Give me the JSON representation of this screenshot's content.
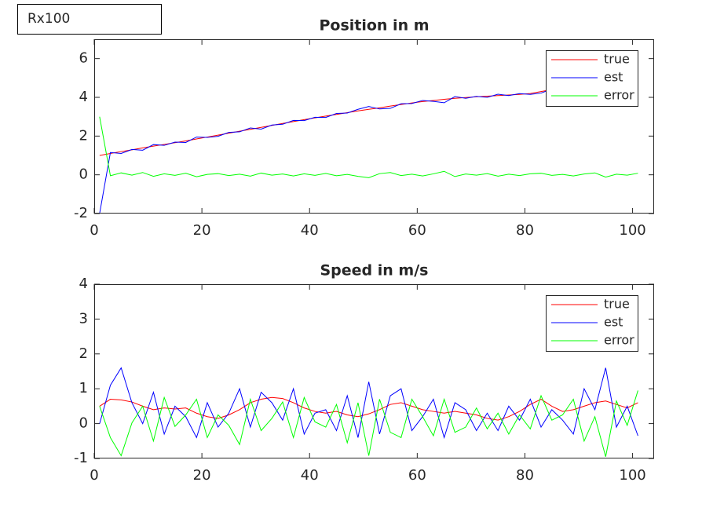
{
  "label": "Rx100",
  "chart_data": [
    {
      "type": "line",
      "title": "Position in m",
      "legend": "northeast",
      "grid": false,
      "x": [
        1,
        3,
        5,
        7,
        9,
        11,
        13,
        15,
        17,
        19,
        21,
        23,
        25,
        27,
        29,
        31,
        33,
        35,
        37,
        39,
        41,
        43,
        45,
        47,
        49,
        51,
        53,
        55,
        57,
        59,
        61,
        63,
        65,
        67,
        69,
        71,
        73,
        75,
        77,
        79,
        81,
        83,
        85,
        87,
        89,
        91,
        93,
        95,
        97,
        99,
        101
      ],
      "xlim": [
        0,
        104
      ],
      "xticks": [
        0,
        20,
        40,
        60,
        80,
        100
      ],
      "ylim": [
        -2,
        7
      ],
      "yticks": [
        -2,
        0,
        2,
        4,
        6
      ],
      "series": [
        {
          "name": "true",
          "color": "#ff0000",
          "values": [
            1.0,
            1.1,
            1.2,
            1.29,
            1.39,
            1.48,
            1.57,
            1.66,
            1.75,
            1.85,
            1.95,
            2.05,
            2.15,
            2.25,
            2.35,
            2.45,
            2.55,
            2.65,
            2.75,
            2.85,
            2.94,
            3.03,
            3.12,
            3.21,
            3.3,
            3.38,
            3.46,
            3.55,
            3.63,
            3.71,
            3.78,
            3.84,
            3.9,
            3.95,
            3.99,
            4.03,
            4.06,
            4.09,
            4.12,
            4.15,
            4.2,
            4.3,
            4.4,
            4.48,
            4.55,
            4.62,
            4.68,
            4.73,
            4.77,
            4.8,
            4.82
          ]
        },
        {
          "name": "est",
          "color": "#0000ff",
          "values": [
            -2.0,
            1.15,
            1.1,
            1.31,
            1.27,
            1.56,
            1.52,
            1.69,
            1.67,
            1.95,
            1.93,
            1.99,
            2.19,
            2.22,
            2.42,
            2.36,
            2.57,
            2.61,
            2.81,
            2.8,
            2.97,
            2.96,
            3.17,
            3.19,
            3.38,
            3.53,
            3.4,
            3.43,
            3.67,
            3.68,
            3.84,
            3.79,
            3.72,
            4.04,
            3.95,
            4.05,
            4.0,
            4.16,
            4.09,
            4.19,
            4.15,
            4.22,
            4.43,
            4.46,
            4.61,
            4.58,
            4.58,
            4.85,
            4.74,
            4.82,
            4.74
          ]
        },
        {
          "name": "error",
          "color": "#00ff00",
          "values": [
            3.0,
            -0.05,
            0.1,
            -0.02,
            0.12,
            -0.08,
            0.05,
            -0.03,
            0.08,
            -0.1,
            0.02,
            0.06,
            -0.04,
            0.03,
            -0.07,
            0.09,
            -0.02,
            0.04,
            -0.06,
            0.05,
            -0.03,
            0.07,
            -0.05,
            0.02,
            -0.08,
            -0.15,
            0.06,
            0.12,
            -0.04,
            0.03,
            -0.06,
            0.05,
            0.18,
            -0.09,
            0.04,
            -0.02,
            0.06,
            -0.07,
            0.03,
            -0.04,
            0.05,
            0.08,
            -0.03,
            0.02,
            -0.06,
            0.04,
            0.1,
            -0.12,
            0.03,
            -0.02,
            0.08
          ]
        }
      ]
    },
    {
      "type": "line",
      "title": "Speed in m/s",
      "legend": "northeast",
      "grid": false,
      "x": [
        1,
        3,
        5,
        7,
        9,
        11,
        13,
        15,
        17,
        19,
        21,
        23,
        25,
        27,
        29,
        31,
        33,
        35,
        37,
        39,
        41,
        43,
        45,
        47,
        49,
        51,
        53,
        55,
        57,
        59,
        61,
        63,
        65,
        67,
        69,
        71,
        73,
        75,
        77,
        79,
        81,
        83,
        85,
        87,
        89,
        91,
        93,
        95,
        97,
        99,
        101
      ],
      "xlim": [
        0,
        104
      ],
      "xticks": [
        0,
        20,
        40,
        60,
        80,
        100
      ],
      "ylim": [
        -1,
        4
      ],
      "yticks": [
        -1,
        0,
        1,
        2,
        3,
        4
      ],
      "series": [
        {
          "name": "true",
          "color": "#ff0000",
          "values": [
            0.5,
            0.7,
            0.68,
            0.62,
            0.5,
            0.4,
            0.45,
            0.42,
            0.45,
            0.3,
            0.2,
            0.15,
            0.25,
            0.4,
            0.6,
            0.7,
            0.75,
            0.72,
            0.6,
            0.45,
            0.35,
            0.3,
            0.35,
            0.25,
            0.2,
            0.28,
            0.4,
            0.55,
            0.6,
            0.5,
            0.4,
            0.35,
            0.3,
            0.35,
            0.3,
            0.25,
            0.15,
            0.1,
            0.2,
            0.35,
            0.55,
            0.7,
            0.5,
            0.35,
            0.4,
            0.5,
            0.6,
            0.65,
            0.55,
            0.45,
            0.6
          ]
        },
        {
          "name": "est",
          "color": "#0000ff",
          "values": [
            0.0,
            1.1,
            1.6,
            0.6,
            0.0,
            0.9,
            -0.3,
            0.5,
            0.2,
            -0.4,
            0.6,
            -0.1,
            0.3,
            1.0,
            -0.1,
            0.9,
            0.6,
            0.1,
            1.0,
            -0.3,
            0.3,
            0.4,
            -0.2,
            0.8,
            -0.4,
            1.2,
            -0.3,
            0.8,
            1.0,
            -0.2,
            0.2,
            0.7,
            -0.4,
            0.6,
            0.4,
            -0.2,
            0.3,
            -0.2,
            0.5,
            0.1,
            0.7,
            -0.1,
            0.4,
            0.1,
            -0.3,
            1.0,
            0.4,
            1.6,
            -0.1,
            0.5,
            -0.35
          ]
        },
        {
          "name": "error",
          "color": "#00ff00",
          "values": [
            0.5,
            -0.4,
            -0.92,
            0.02,
            0.5,
            -0.5,
            0.75,
            -0.08,
            0.25,
            0.7,
            -0.4,
            0.25,
            -0.05,
            -0.6,
            0.7,
            -0.2,
            0.15,
            0.62,
            -0.4,
            0.75,
            0.05,
            -0.1,
            0.55,
            -0.55,
            0.6,
            -0.92,
            0.7,
            -0.25,
            -0.4,
            0.7,
            0.2,
            -0.35,
            0.7,
            -0.25,
            -0.1,
            0.45,
            -0.15,
            0.3,
            -0.3,
            0.25,
            -0.15,
            0.8,
            0.1,
            0.25,
            0.7,
            -0.5,
            0.2,
            -0.95,
            0.65,
            -0.05,
            0.95
          ]
        }
      ]
    }
  ]
}
